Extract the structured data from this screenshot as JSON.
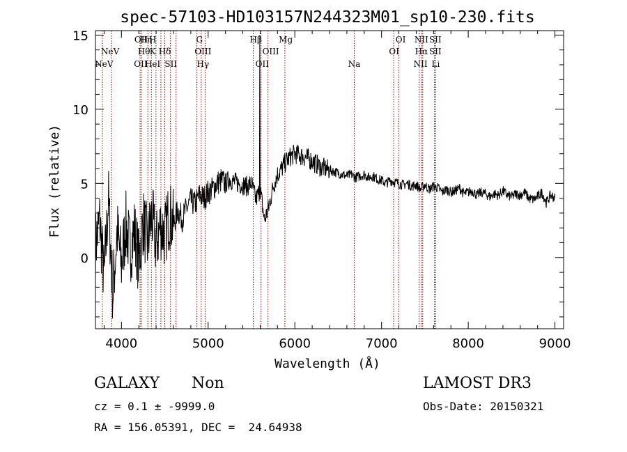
{
  "chart_data": {
    "type": "line",
    "title": "spec-57103-HD103157N244323M01_sp10-230.fits",
    "xlabel": "Wavelength (Å)",
    "ylabel": "Flux (relative)",
    "xlim": [
      3700,
      9100
    ],
    "ylim": [
      -4.8,
      15.3
    ],
    "x_ticks": [
      4000,
      5000,
      6000,
      7000,
      8000,
      9000
    ],
    "y_ticks": [
      0,
      5,
      10,
      15
    ],
    "grid": false,
    "line_color": "#000000",
    "marker_color": "#8b0000",
    "series": [
      {
        "x": [
          3700,
          3750,
          3800,
          3850,
          3900,
          3950,
          4000,
          4050,
          4100,
          4150,
          4200,
          4250,
          4300,
          4350,
          4400,
          4450,
          4500,
          4550,
          4600,
          4650,
          4700,
          4750,
          4800,
          4850,
          4900,
          4950,
          5000,
          5050,
          5100,
          5150,
          5200,
          5250,
          5300,
          5350,
          5400,
          5450,
          5500,
          5550,
          5600,
          5650,
          5700,
          5750,
          5800,
          5850,
          5900,
          5950,
          6000,
          6050,
          6100,
          6150,
          6200,
          6250,
          6300,
          6350,
          6400,
          6450,
          6500,
          6550,
          6600,
          6650,
          6700,
          6750,
          6800,
          6850,
          6900,
          6950,
          7000,
          7050,
          7100,
          7150,
          7200,
          7250,
          7300,
          7350,
          7400,
          7450,
          7500,
          7550,
          7600,
          7650,
          7700,
          7750,
          7800,
          7850,
          7900,
          7950,
          8000,
          8050,
          8100,
          8150,
          8200,
          8250,
          8300,
          8350,
          8400,
          8450,
          8500,
          8550,
          8600,
          8650,
          8700,
          8750,
          8800,
          8850,
          8900,
          8950,
          9000
        ],
        "y": [
          0.8,
          2.5,
          -1.5,
          4.0,
          -2.5,
          1.8,
          -0.5,
          2.2,
          0.5,
          1.8,
          -0.3,
          2.5,
          1.0,
          2.8,
          0.8,
          2.2,
          1.5,
          3.0,
          2.2,
          3.2,
          2.6,
          3.3,
          3.8,
          3.6,
          4.2,
          4.0,
          4.4,
          4.6,
          5.0,
          5.2,
          5.0,
          5.3,
          5.1,
          5.0,
          4.9,
          4.8,
          5.0,
          3.9,
          4.6,
          2.5,
          3.4,
          4.8,
          5.6,
          6.0,
          6.5,
          6.8,
          7.0,
          6.9,
          6.8,
          6.7,
          6.5,
          6.3,
          6.1,
          6.0,
          5.9,
          5.8,
          5.7,
          5.6,
          5.5,
          5.6,
          5.4,
          5.5,
          5.6,
          5.4,
          5.5,
          5.3,
          5.2,
          5.0,
          5.2,
          5.1,
          5.0,
          4.9,
          5.0,
          4.8,
          4.9,
          4.6,
          4.9,
          4.6,
          4.8,
          4.7,
          4.4,
          4.6,
          4.4,
          4.5,
          4.7,
          4.3,
          4.4,
          4.5,
          4.2,
          4.4,
          4.3,
          4.1,
          4.3,
          4.2,
          4.5,
          4.2,
          4.1,
          4.3,
          4.2,
          4.4,
          4.0,
          3.9,
          4.1,
          4.4,
          3.7,
          4.2,
          4.0
        ]
      }
    ],
    "spikes": [
      {
        "x": 5595,
        "y": 15.0,
        "note": "narrow emission spike"
      }
    ],
    "lines": [
      {
        "label": "NeV",
        "x": 3800,
        "row": 3
      },
      {
        "label": "NeV",
        "x": 3870,
        "row": 2
      },
      {
        "label": "OII",
        "x": 4227,
        "row": 1
      },
      {
        "label": "Hη",
        "x": 4283,
        "row": 1
      },
      {
        "label": "H",
        "x": 4360,
        "row": 1
      },
      {
        "label": "Hθ",
        "x": 4260,
        "row": 2
      },
      {
        "label": "K",
        "x": 4360,
        "row": 2
      },
      {
        "label": "Hδ",
        "x": 4500,
        "row": 2
      },
      {
        "label": "OII",
        "x": 4222,
        "row": 3
      },
      {
        "label": "HeI",
        "x": 4360,
        "row": 3
      },
      {
        "label": "SII",
        "x": 4570,
        "row": 3
      },
      {
        "label": "G",
        "x": 4900,
        "row": 1
      },
      {
        "label": "OIII",
        "x": 4940,
        "row": 2
      },
      {
        "label": "Hγ",
        "x": 4940,
        "row": 3
      },
      {
        "label": "Hβ",
        "x": 5550,
        "row": 1
      },
      {
        "label": "OIII",
        "x": 5722,
        "row": 2
      },
      {
        "label": "OII",
        "x": 5623,
        "row": 3
      },
      {
        "label": "Mg",
        "x": 5895,
        "row": 1
      },
      {
        "label": "Na",
        "x": 6685,
        "row": 3
      },
      {
        "label": "OI",
        "x": 7220,
        "row": 1
      },
      {
        "label": "OI",
        "x": 7145,
        "row": 2
      },
      {
        "label": "NII",
        "x": 7460,
        "row": 1
      },
      {
        "label": "SII",
        "x": 7620,
        "row": 1
      },
      {
        "label": "Hα",
        "x": 7460,
        "row": 2
      },
      {
        "label": "SII",
        "x": 7620,
        "row": 2
      },
      {
        "label": "NII",
        "x": 7450,
        "row": 3
      },
      {
        "label": "Li",
        "x": 7625,
        "row": 3
      }
    ],
    "marker_x": [
      3780,
      3885,
      4215,
      4230,
      4305,
      4345,
      4398,
      4455,
      4500,
      4565,
      4630,
      4870,
      4920,
      4965,
      5520,
      5610,
      5690,
      5885,
      6685,
      7140,
      7200,
      7435,
      7460,
      7475,
      7610,
      7625
    ]
  },
  "info": {
    "class_label": "GALAXY",
    "subclass_label": "Non",
    "cz_text": "cz = 0.1 ± -9999.0",
    "radec_text": "RA = 156.05391, DEC =  24.64938",
    "survey_label": "LAMOST DR3",
    "obs_date_text": "Obs-Date: 20150321"
  }
}
